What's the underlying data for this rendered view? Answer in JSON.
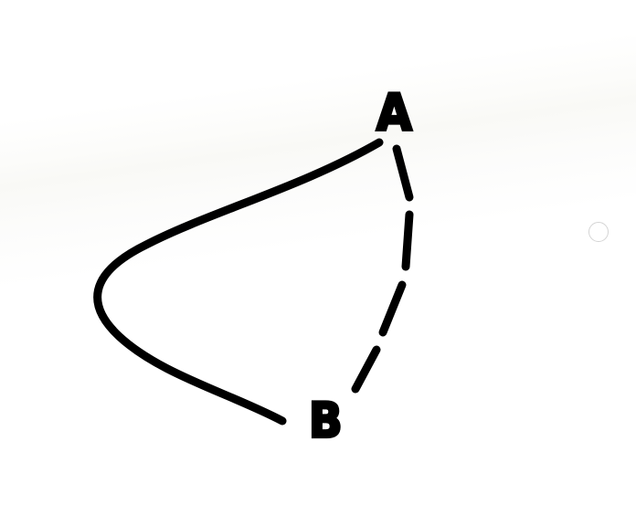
{
  "nodes": {
    "a": {
      "label": "A"
    },
    "b": {
      "label": "B"
    }
  },
  "edges": [
    {
      "from": "A",
      "to": "B",
      "style": "solid",
      "shape": "curved"
    },
    {
      "from": "A",
      "to": "B",
      "style": "dashed",
      "shape": "straight"
    }
  ],
  "colors": {
    "stroke": "#000000",
    "background": "#ffffff",
    "control_border": "#d4d4d4"
  }
}
